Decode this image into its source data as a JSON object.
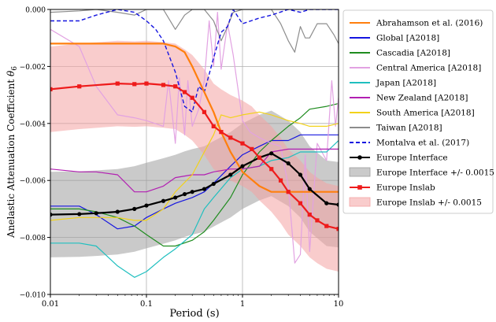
{
  "chart_data": {
    "type": "line",
    "xlabel": "Period (s)",
    "ylabel": "Anelastic Attenuation Coefficient θ6",
    "ylabel_main": "Anelastic Attenuation Coefficient ",
    "ylabel_symbol": "θ",
    "ylabel_sub": "6",
    "xscale": "log",
    "xlim": [
      0.01,
      10
    ],
    "ylim": [
      -0.01,
      0.0
    ],
    "grid": true,
    "legend_position": "right",
    "x_ticks": [
      {
        "value": 0.01,
        "label": "0.01"
      },
      {
        "value": 0.1,
        "label": "0.1"
      },
      {
        "value": 1,
        "label": "1"
      },
      {
        "value": 10,
        "label": "10"
      }
    ],
    "y_ticks": [
      {
        "value": -0.01,
        "label": "−0.010"
      },
      {
        "value": -0.008,
        "label": "−0.008"
      },
      {
        "value": -0.006,
        "label": "−0.006"
      },
      {
        "value": -0.004,
        "label": "−0.004"
      },
      {
        "value": -0.002,
        "label": "−0.002"
      },
      {
        "value": 0.0,
        "label": "0.000"
      }
    ],
    "bands": [
      {
        "name": "Europe Interface +/- 0.0015",
        "color": "#9e9e9e",
        "x": [
          0.01,
          0.02,
          0.03,
          0.05,
          0.075,
          0.1,
          0.15,
          0.2,
          0.25,
          0.3,
          0.4,
          0.5,
          0.75,
          1,
          1.5,
          2,
          3,
          4,
          5,
          7.5,
          10
        ],
        "center": [
          -0.0072,
          -0.00718,
          -0.00715,
          -0.0071,
          -0.007,
          -0.00688,
          -0.00672,
          -0.0066,
          -0.00648,
          -0.0064,
          -0.0063,
          -0.00612,
          -0.0058,
          -0.0055,
          -0.0052,
          -0.00505,
          -0.0054,
          -0.0058,
          -0.0063,
          -0.0068,
          -0.00685
        ],
        "half_width": 0.0015
      },
      {
        "name": "Europe Inslab +/- 0.0015",
        "color": "#f4a3a3",
        "x": [
          0.01,
          0.02,
          0.05,
          0.075,
          0.1,
          0.15,
          0.2,
          0.25,
          0.3,
          0.4,
          0.5,
          0.6,
          0.75,
          1,
          1.25,
          1.5,
          2,
          2.5,
          3,
          4,
          5,
          6,
          7.5,
          10
        ],
        "center": [
          -0.0028,
          -0.0027,
          -0.0026,
          -0.00262,
          -0.0026,
          -0.00265,
          -0.0027,
          -0.0029,
          -0.0031,
          -0.0036,
          -0.0041,
          -0.0043,
          -0.0045,
          -0.0047,
          -0.0049,
          -0.0052,
          -0.0056,
          -0.006,
          -0.0064,
          -0.0068,
          -0.0072,
          -0.0074,
          -0.0076,
          -0.0077
        ],
        "half_width": 0.0015
      }
    ],
    "series": [
      {
        "name": "Global [A2018]",
        "color": "#1515e0",
        "width": 1.2,
        "dash": "",
        "x": [
          0.01,
          0.02,
          0.03,
          0.05,
          0.075,
          0.1,
          0.15,
          0.2,
          0.3,
          0.4,
          0.5,
          0.75,
          1,
          1.5,
          2,
          3,
          4,
          5,
          7.5,
          10
        ],
        "y": [
          -0.0069,
          -0.0069,
          -0.0072,
          -0.0077,
          -0.0076,
          -0.0073,
          -0.007,
          -0.0068,
          -0.0066,
          -0.0064,
          -0.0061,
          -0.0055,
          -0.0051,
          -0.0048,
          -0.0046,
          -0.0046,
          -0.0044,
          -0.0044,
          -0.0044,
          -0.0044
        ]
      },
      {
        "name": "Cascadia [A2018]",
        "color": "#1f8c1f",
        "width": 1.2,
        "dash": "",
        "x": [
          0.01,
          0.02,
          0.03,
          0.05,
          0.075,
          0.1,
          0.15,
          0.2,
          0.3,
          0.4,
          0.5,
          0.75,
          1,
          1.5,
          2,
          3,
          4,
          5,
          7.5,
          10
        ],
        "y": [
          -0.007,
          -0.007,
          -0.0071,
          -0.0073,
          -0.0076,
          -0.0079,
          -0.0083,
          -0.0083,
          -0.0081,
          -0.0078,
          -0.0074,
          -0.0066,
          -0.0058,
          -0.005,
          -0.0046,
          -0.0041,
          -0.0038,
          -0.0035,
          -0.0034,
          -0.0033
        ]
      },
      {
        "name": "Central America [A2018]",
        "color": "#e2a2e2",
        "width": 1.2,
        "dash": "",
        "x": [
          0.01,
          0.02,
          0.03,
          0.05,
          0.075,
          0.1,
          0.15,
          0.17,
          0.2,
          0.22,
          0.25,
          0.27,
          0.3,
          0.35,
          0.4,
          0.45,
          0.5,
          0.55,
          0.6,
          0.7,
          0.8,
          1,
          1.2,
          1.5,
          2,
          2.5,
          3,
          3.5,
          4,
          4.5,
          5,
          6,
          7.5,
          8.5,
          9.3,
          10
        ],
        "y": [
          -0.0007,
          -0.0013,
          -0.0027,
          -0.0037,
          -0.0038,
          -0.0039,
          -0.0041,
          -0.0025,
          -0.0047,
          -0.0024,
          -0.0044,
          -0.0025,
          -0.0041,
          -0.0035,
          -0.0025,
          -0.0004,
          -0.002,
          -0.0001,
          -0.0021,
          -0.0005,
          -0.0016,
          -0.0039,
          -0.0043,
          -0.0045,
          -0.0047,
          -0.0048,
          -0.0062,
          -0.0089,
          -0.0086,
          -0.0051,
          -0.0085,
          -0.0047,
          -0.0053,
          -0.0025,
          -0.0041,
          -0.0031
        ]
      },
      {
        "name": "Japan [A2018]",
        "color": "#1fbfbf",
        "width": 1.2,
        "dash": "",
        "x": [
          0.01,
          0.02,
          0.03,
          0.05,
          0.075,
          0.1,
          0.15,
          0.2,
          0.3,
          0.4,
          0.5,
          0.75,
          1,
          1.5,
          2,
          3,
          4,
          5,
          7.5,
          10
        ],
        "y": [
          -0.0082,
          -0.0082,
          -0.0083,
          -0.009,
          -0.0094,
          -0.0092,
          -0.0087,
          -0.0084,
          -0.0079,
          -0.007,
          -0.0066,
          -0.0059,
          -0.0056,
          -0.0055,
          -0.0053,
          -0.0052,
          -0.005,
          -0.005,
          -0.005,
          -0.0046
        ]
      },
      {
        "name": "New Zealand [A2018]",
        "color": "#b21fb2",
        "width": 1.2,
        "dash": "",
        "x": [
          0.01,
          0.02,
          0.03,
          0.05,
          0.075,
          0.1,
          0.15,
          0.2,
          0.3,
          0.4,
          0.5,
          0.75,
          1,
          1.5,
          2,
          3,
          4,
          5,
          7.5,
          10
        ],
        "y": [
          -0.0056,
          -0.0057,
          -0.0057,
          -0.0058,
          -0.0064,
          -0.0064,
          -0.0062,
          -0.0059,
          -0.0058,
          -0.0058,
          -0.0057,
          -0.0056,
          -0.0056,
          -0.0055,
          -0.005,
          -0.0049,
          -0.0049,
          -0.0049,
          -0.0049,
          -0.0049
        ]
      },
      {
        "name": "South America [A2018]",
        "color": "#f2d21a",
        "width": 1.2,
        "dash": "",
        "x": [
          0.01,
          0.02,
          0.03,
          0.05,
          0.075,
          0.1,
          0.15,
          0.2,
          0.3,
          0.4,
          0.5,
          0.6,
          0.75,
          1,
          1.5,
          2,
          3,
          4,
          5,
          7.5,
          10
        ],
        "y": [
          -0.0074,
          -0.0073,
          -0.0073,
          -0.0073,
          -0.0074,
          -0.0074,
          -0.007,
          -0.0064,
          -0.0058,
          -0.005,
          -0.0044,
          -0.0037,
          -0.0038,
          -0.0037,
          -0.0036,
          -0.0037,
          -0.0039,
          -0.004,
          -0.0041,
          -0.0041,
          -0.004
        ]
      },
      {
        "name": "Taiwan [A2018]",
        "color": "#8c8c8c",
        "width": 1.2,
        "dash": "",
        "x": [
          0.01,
          0.02,
          0.03,
          0.05,
          0.075,
          0.1,
          0.15,
          0.2,
          0.25,
          0.3,
          0.4,
          0.5,
          0.6,
          0.7,
          0.8,
          1,
          1.5,
          2,
          2.5,
          3,
          3.5,
          4,
          4.5,
          5,
          6,
          7.5,
          9,
          10
        ],
        "y": [
          -0.0001,
          -5e-05,
          0.0,
          -0.0001,
          -0.0002,
          0.0,
          0.0,
          -0.0007,
          -0.0002,
          0.0,
          0.0,
          -0.0004,
          -0.0011,
          -0.0006,
          -0.0001,
          0.0,
          0.0,
          0.0,
          -0.0005,
          -0.0011,
          -0.0015,
          -0.0006,
          -0.001,
          -0.001,
          -0.0005,
          -0.0005,
          -0.0009,
          -0.0012
        ]
      },
      {
        "name": "Montalva et al. (2017)",
        "color": "#1515e0",
        "width": 1.4,
        "dash": "5,3",
        "x": [
          0.01,
          0.02,
          0.03,
          0.05,
          0.075,
          0.1,
          0.125,
          0.15,
          0.2,
          0.25,
          0.3,
          0.35,
          0.4,
          0.5,
          0.6,
          0.7,
          0.8,
          1,
          1.5,
          2,
          3,
          4,
          5,
          7.5,
          10
        ],
        "y": [
          -0.0004,
          -0.0004,
          -0.0002,
          0.0,
          -0.0001,
          -0.0004,
          -0.0007,
          -0.0011,
          -0.0022,
          -0.0034,
          -0.0036,
          -0.0027,
          -0.0029,
          -0.0017,
          -0.0008,
          -0.0006,
          0.0,
          -0.0005,
          -0.0003,
          -0.0002,
          0.0,
          -0.0001,
          0.0,
          0.0,
          0.0
        ]
      },
      {
        "name": "Abrahamson et al. (2016)",
        "color": "#ff7f0e",
        "width": 2.2,
        "dash": "",
        "x": [
          0.01,
          0.02,
          0.03,
          0.05,
          0.075,
          0.1,
          0.15,
          0.2,
          0.25,
          0.3,
          0.4,
          0.5,
          0.6,
          0.75,
          1,
          1.5,
          2,
          3,
          4,
          5,
          7.5,
          10
        ],
        "y": [
          -0.0012,
          -0.0012,
          -0.0012,
          -0.0012,
          -0.0012,
          -0.0012,
          -0.0012,
          -0.0013,
          -0.0015,
          -0.002,
          -0.0029,
          -0.0036,
          -0.0043,
          -0.005,
          -0.0057,
          -0.0062,
          -0.0064,
          -0.0064,
          -0.0064,
          -0.0064,
          -0.0064,
          -0.0064
        ]
      },
      {
        "name": "Europe Interface",
        "color": "#000000",
        "width": 2.2,
        "dash": "",
        "marker": "circle",
        "x": [
          0.01,
          0.02,
          0.03,
          0.05,
          0.075,
          0.1,
          0.15,
          0.2,
          0.25,
          0.3,
          0.4,
          0.5,
          0.75,
          1,
          1.5,
          2,
          3,
          4,
          5,
          7.5,
          10
        ],
        "y": [
          -0.0072,
          -0.00718,
          -0.00715,
          -0.0071,
          -0.007,
          -0.00688,
          -0.00672,
          -0.0066,
          -0.00648,
          -0.0064,
          -0.0063,
          -0.00612,
          -0.0058,
          -0.0055,
          -0.0052,
          -0.00505,
          -0.0054,
          -0.0058,
          -0.0063,
          -0.0068,
          -0.00685
        ]
      },
      {
        "name": "Europe Inslab",
        "color": "#ee1b1b",
        "width": 2.2,
        "dash": "",
        "marker": "square",
        "x": [
          0.01,
          0.02,
          0.05,
          0.075,
          0.1,
          0.15,
          0.2,
          0.25,
          0.3,
          0.4,
          0.5,
          0.6,
          0.75,
          1,
          1.25,
          1.5,
          2,
          2.5,
          3,
          4,
          5,
          6,
          7.5,
          10
        ],
        "y": [
          -0.0028,
          -0.0027,
          -0.0026,
          -0.00262,
          -0.0026,
          -0.00265,
          -0.0027,
          -0.0029,
          -0.0031,
          -0.0036,
          -0.0041,
          -0.0043,
          -0.0045,
          -0.0047,
          -0.0049,
          -0.0052,
          -0.0056,
          -0.006,
          -0.0064,
          -0.0068,
          -0.0072,
          -0.0074,
          -0.0076,
          -0.0077
        ]
      }
    ],
    "legend": [
      {
        "label": "Abrahamson et al. (2016)",
        "color": "#ff7f0e",
        "kind": "line",
        "dash": ""
      },
      {
        "label": "Global [A2018]",
        "color": "#1515e0",
        "kind": "line",
        "dash": ""
      },
      {
        "label": "Cascadia [A2018]",
        "color": "#1f8c1f",
        "kind": "line",
        "dash": ""
      },
      {
        "label": "Central America [A2018]",
        "color": "#e2a2e2",
        "kind": "line",
        "dash": ""
      },
      {
        "label": "Japan [A2018]",
        "color": "#1fbfbf",
        "kind": "line",
        "dash": ""
      },
      {
        "label": "New Zealand [A2018]",
        "color": "#b21fb2",
        "kind": "line",
        "dash": ""
      },
      {
        "label": "South America [A2018]",
        "color": "#f2d21a",
        "kind": "line",
        "dash": ""
      },
      {
        "label": "Taiwan [A2018]",
        "color": "#8c8c8c",
        "kind": "line",
        "dash": ""
      },
      {
        "label": "Montalva et al. (2017)",
        "color": "#1515e0",
        "kind": "line",
        "dash": "5,3"
      },
      {
        "label": "Europe Interface",
        "color": "#000000",
        "kind": "line",
        "marker": "circle",
        "dash": ""
      },
      {
        "label": "Europe Interface +/- 0.0015",
        "color": "#9e9e9e",
        "kind": "patch"
      },
      {
        "label": "Europe Inslab",
        "color": "#ee1b1b",
        "kind": "line",
        "marker": "square",
        "dash": ""
      },
      {
        "label": "Europe Inslab +/- 0.0015",
        "color": "#f4a3a3",
        "kind": "patch"
      }
    ]
  }
}
